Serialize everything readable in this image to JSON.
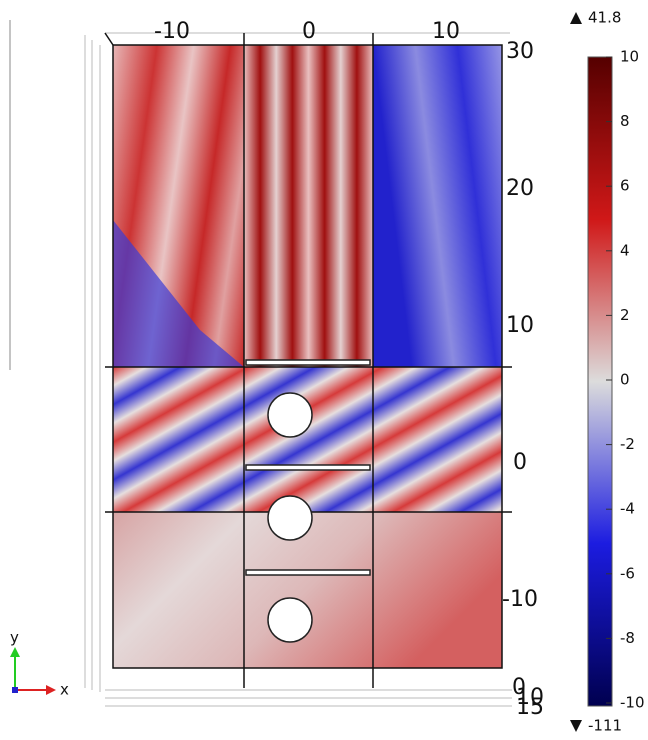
{
  "plot": {
    "x_ticks": [
      -10,
      0,
      10
    ],
    "y_ticks": [
      30,
      20,
      10,
      0,
      -10
    ],
    "corner_labels": [
      "0",
      "10",
      "15"
    ],
    "axis_x": "x",
    "axis_y": "y",
    "colorbar": {
      "max_label": "41.8",
      "min_label": "-111",
      "ticks": [
        10,
        8,
        6,
        4,
        2,
        0,
        -2,
        -4,
        -6,
        -8,
        -10
      ]
    }
  }
}
